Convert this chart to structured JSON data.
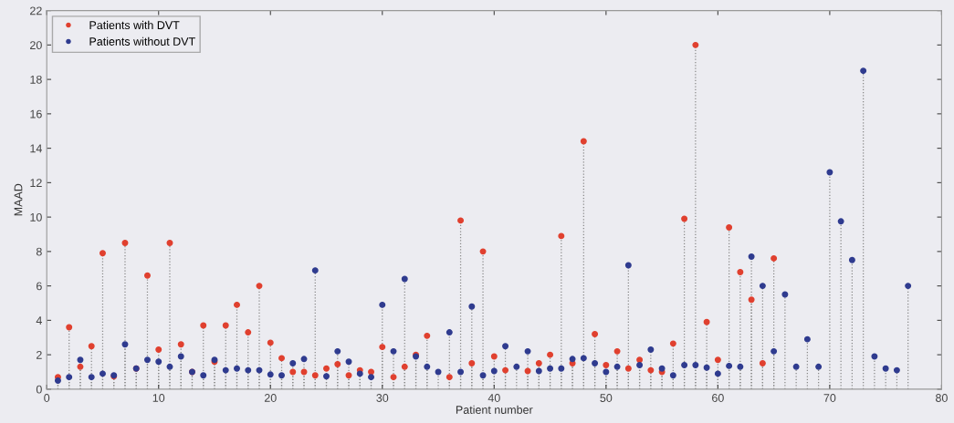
{
  "chart_data": {
    "type": "lollipop",
    "xlabel": "Patient number",
    "ylabel": "MAAD",
    "x": [
      1,
      2,
      3,
      4,
      5,
      6,
      7,
      8,
      9,
      10,
      11,
      12,
      13,
      14,
      15,
      16,
      17,
      18,
      19,
      20,
      21,
      22,
      23,
      24,
      25,
      26,
      27,
      28,
      29,
      30,
      31,
      32,
      33,
      34,
      35,
      36,
      37,
      38,
      39,
      40,
      41,
      42,
      43,
      44,
      45,
      46,
      47,
      48,
      49,
      50,
      51,
      52,
      53,
      54,
      55,
      56,
      57,
      58,
      59,
      60,
      61,
      62,
      63,
      64,
      65,
      66,
      67,
      68,
      69,
      70,
      71,
      72,
      73,
      74,
      75,
      76,
      77
    ],
    "series": [
      {
        "name": "Patients with DVT",
        "color": "#e0402f",
        "values": [
          0.7,
          3.6,
          1.3,
          2.5,
          7.9,
          0.75,
          8.5,
          1.2,
          6.6,
          2.3,
          8.5,
          2.6,
          1.0,
          3.7,
          1.6,
          3.7,
          4.9,
          3.3,
          6.0,
          2.7,
          1.8,
          1.0,
          1.0,
          0.8,
          1.2,
          1.45,
          0.8,
          1.1,
          1.0,
          2.45,
          0.7,
          1.3,
          2.0,
          3.1,
          null,
          0.7,
          9.8,
          1.5,
          8.0,
          1.9,
          1.1,
          null,
          1.05,
          1.5,
          2.0,
          8.9,
          1.5,
          14.4,
          3.2,
          1.4,
          2.2,
          1.2,
          1.7,
          1.1,
          1.0,
          2.65,
          9.9,
          20.0,
          3.9,
          1.7,
          9.4,
          6.8,
          5.2,
          1.5,
          7.6,
          null,
          null,
          null,
          null,
          null,
          null,
          null,
          null,
          null,
          null,
          null,
          null
        ]
      },
      {
        "name": "Patients without DVT",
        "color": "#2f3b8f",
        "values": [
          0.5,
          0.7,
          1.7,
          0.7,
          0.9,
          0.8,
          2.6,
          1.2,
          1.7,
          1.6,
          1.3,
          1.9,
          1.0,
          0.8,
          1.7,
          1.1,
          1.2,
          1.1,
          1.1,
          0.85,
          0.8,
          1.5,
          1.75,
          6.9,
          0.75,
          2.2,
          1.6,
          0.9,
          0.7,
          4.9,
          2.2,
          6.4,
          1.9,
          1.3,
          1.0,
          3.3,
          1.0,
          4.8,
          0.8,
          1.05,
          2.5,
          1.3,
          2.2,
          1.05,
          1.2,
          1.2,
          1.75,
          1.8,
          1.5,
          1.0,
          1.3,
          7.2,
          1.4,
          2.3,
          1.2,
          0.8,
          1.4,
          1.4,
          1.25,
          0.9,
          1.35,
          1.3,
          7.7,
          6.0,
          2.2,
          5.5,
          1.3,
          2.9,
          1.3,
          12.6,
          9.75,
          7.5,
          18.5,
          1.9,
          1.2,
          1.1,
          6.0
        ]
      }
    ],
    "xlim": [
      0,
      80
    ],
    "xticks": [
      0,
      10,
      20,
      30,
      40,
      50,
      60,
      70,
      80
    ],
    "ylim": [
      0,
      22
    ],
    "yticks": [
      0,
      2,
      4,
      6,
      8,
      10,
      12,
      14,
      16,
      18,
      20,
      22
    ],
    "marker": "circle",
    "line_style": "dotted",
    "legend": "top left",
    "grid": false
  }
}
